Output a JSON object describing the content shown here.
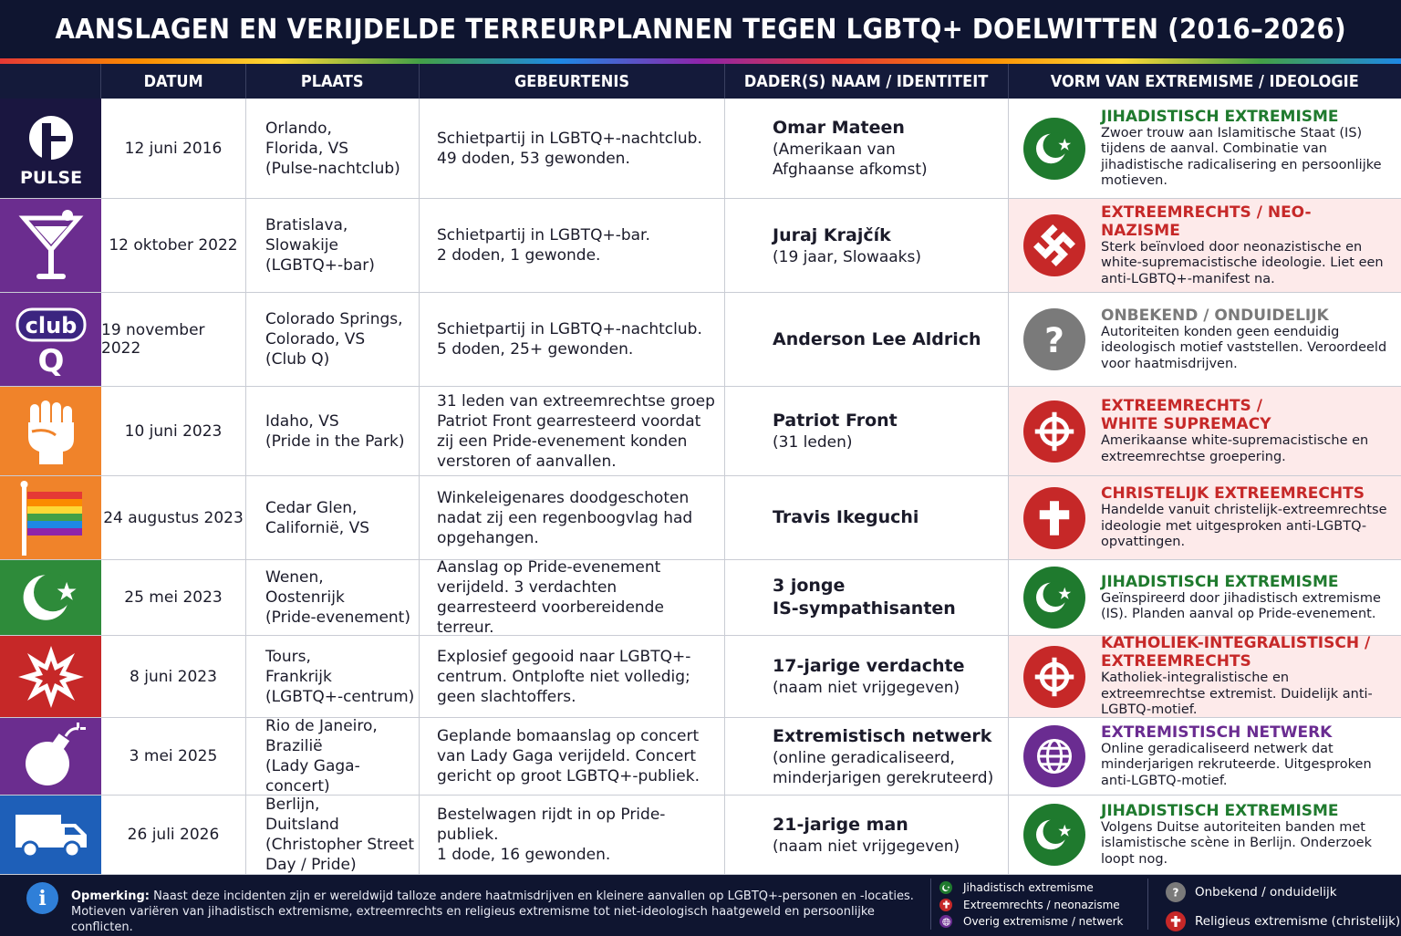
{
  "title": "AANSLAGEN EN VERIJDELDE TERREURPLANNEN TEGEN LGBTQ+ DOELWITTEN (2016–2026)",
  "columns": [
    "DATUM",
    "PLAATS",
    "GEBEURTENIS",
    "DADER(S) NAAM / IDENTITEIT",
    "VORM VAN EXTREMISME / IDEOLOGIE"
  ],
  "colors": {
    "jihadist": "#1f7a2e",
    "far_right": "#c62828",
    "unknown": "#7a7a7a",
    "network": "#6a2c91",
    "header_bg": "#0f1530"
  },
  "rows": [
    {
      "icon": "pulse-logo-icon",
      "icon_text": "PULSE",
      "icon_bg": "#1a1640",
      "date": "12 juni 2016",
      "place": "Orlando,\nFlorida, VS\n(Pulse-nachtclub)",
      "event": "Schietpartij in LGBTQ+-nachtclub.\n49 doden, 53 gewonden.",
      "perp_name": "Omar Mateen",
      "perp_detail": "(Amerikaan van\nAfghaanse afkomst)",
      "ideo_type": "jihadist",
      "ideo_icon": "crescent-star-icon",
      "ideo_title": "JIHADISTISCH EXTREMISME",
      "ideo_desc": "Zwoer trouw aan Islamitische Staat (IS) tijdens de aanval. Combinatie van jihadistische radicalisering en persoonlijke motieven.",
      "ideo_bg": "#ffffff"
    },
    {
      "icon": "cocktail-glass-icon",
      "icon_bg": "#6b2d8f",
      "date": "12 oktober 2022",
      "place": "Bratislava,\nSlowakije\n(LGBTQ+-bar)",
      "event": "Schietpartij in LGBTQ+-bar.\n2 doden, 1 gewonde.",
      "perp_name": "Juraj Krajčík",
      "perp_detail": "(19 jaar, Slowaaks)",
      "ideo_type": "far_right",
      "ideo_icon": "swastika-icon",
      "ideo_title": "EXTREEMRECHTS / NEO-NAZISME",
      "ideo_desc": "Sterk beïnvloed door neonazistische en white-supremacistische ideologie. Liet een anti-LGBTQ+-manifest na.",
      "ideo_bg": "#fdeaea"
    },
    {
      "icon": "club-q-logo-icon",
      "icon_text_1": "club",
      "icon_text_2": "Q",
      "icon_bg": "#6b2d8f",
      "date": "19 november 2022",
      "place": "Colorado Springs,\nColorado, VS\n(Club Q)",
      "event": "Schietpartij in LGBTQ+-nachtclub.\n5 doden, 25+ gewonden.",
      "perp_name": "Anderson Lee Aldrich",
      "perp_detail": "",
      "ideo_type": "unknown",
      "ideo_icon": "question-mark-icon",
      "ideo_title": "ONBEKEND / ONDUIDELIJK",
      "ideo_desc": "Autoriteiten konden geen eenduidig ideologisch motief vaststellen. Veroordeeld voor haatmisdrijven.",
      "ideo_bg": "#ffffff"
    },
    {
      "icon": "raised-fist-icon",
      "icon_bg": "#f0832a",
      "date": "10 juni 2023",
      "place": "Idaho, VS\n(Pride in the Park)",
      "event": "31 leden van extreemrechtse groep Patriot Front gearresteerd voordat zij een Pride-evenement konden verstoren of aanvallen.",
      "perp_name": "Patriot Front",
      "perp_detail": "(31 leden)",
      "ideo_type": "far_right",
      "ideo_icon": "celtic-cross-icon",
      "ideo_title": "EXTREEMRECHTS /\nWHITE SUPREMACY",
      "ideo_desc": "Amerikaanse white-supremacistische en extreemrechtse groepering.",
      "ideo_bg": "#fdeaea"
    },
    {
      "icon": "rainbow-flag-icon",
      "icon_bg": "#f0832a",
      "date": "24 augustus 2023",
      "place": "Cedar Glen,\nCalifornië, VS",
      "event": "Winkeleigenares doodgeschoten nadat zij een regenboogvlag had opgehangen.",
      "perp_name": "Travis Ikeguchi",
      "perp_detail": "",
      "ideo_type": "far_right",
      "ideo_icon": "christian-cross-icon",
      "ideo_title": "CHRISTELIJK EXTREEMRECHTS",
      "ideo_desc": "Handelde vanuit christelijk-extreemrechtse ideologie met uitgesproken anti-LGBTQ-opvattingen.",
      "ideo_bg": "#fdeaea"
    },
    {
      "icon": "crescent-star-icon",
      "icon_bg": "#2e8b3a",
      "date": "25 mei 2023",
      "place": "Wenen,\nOostenrijk\n(Pride-evenement)",
      "event": "Aanslag op Pride-evenement verijdeld. 3 verdachten gearresteerd voorbereidende terreur.",
      "perp_name": "3 jonge\nIS-sympathisanten",
      "perp_detail": "",
      "ideo_type": "jihadist",
      "ideo_icon": "crescent-star-icon",
      "ideo_title": "JIHADISTISCH EXTREMISME",
      "ideo_desc": "Geïnspireerd door jihadistisch extremisme (IS). Planden aanval op Pride-evenement.",
      "ideo_bg": "#ffffff"
    },
    {
      "icon": "explosion-icon",
      "icon_bg": "#c62828",
      "date": "8 juni 2023",
      "place": "Tours,\nFrankrijk\n(LGBTQ+-centrum)",
      "event": "Explosief gegooid naar LGBTQ+-centrum. Ontplofte niet volledig; geen slachtoffers.",
      "perp_name": "17-jarige verdachte",
      "perp_detail": "(naam niet vrijgegeven)",
      "ideo_type": "far_right",
      "ideo_icon": "celtic-cross-icon",
      "ideo_title": "KATHOLIEK-INTEGRALISTISCH /\nEXTREEMRECHTS",
      "ideo_desc": "Katholiek-integralistische en extreemrechtse extremist. Duidelijk anti-LGBTQ-motief.",
      "ideo_bg": "#fdeaea"
    },
    {
      "icon": "bomb-icon",
      "icon_bg": "#6b2d8f",
      "date": "3 mei 2025",
      "place": "Rio de Janeiro,\nBrazilië\n(Lady Gaga-concert)",
      "event": "Geplande bomaanslag op concert van Lady Gaga verijdeld. Concert gericht op groot LGBTQ+-publiek.",
      "perp_name": "Extremistisch netwerk",
      "perp_detail": "(online geradicaliseerd,\nminderjarigen gerekruteerd)",
      "ideo_type": "network",
      "ideo_icon": "globe-icon",
      "ideo_title": "EXTREMISTISCH NETWERK",
      "ideo_desc": "Online geradicaliseerd netwerk dat minderjarigen rekruteerde. Uitgesproken anti-LGBTQ-motief.",
      "ideo_bg": "#ffffff"
    },
    {
      "icon": "van-icon",
      "icon_bg": "#1e5fb8",
      "date": "26 juli 2026",
      "place": "Berlijn,\nDuitsland\n(Christopher Street\nDay / Pride)",
      "event": "Bestelwagen rijdt in op Pride-publiek.\n1 dode, 16 gewonden.",
      "perp_name": "21-jarige man",
      "perp_detail": "(naam niet vrijgegeven)",
      "ideo_type": "jihadist",
      "ideo_icon": "crescent-star-icon",
      "ideo_title": "JIHADISTISCH EXTREMISME",
      "ideo_desc": "Volgens Duitse autoriteiten banden met islamistische scène in Berlijn. Onderzoek loopt nog.",
      "ideo_bg": "#ffffff"
    }
  ],
  "footer": {
    "note_label": "Opmerking:",
    "note_text": " Naast deze incidenten zijn er wereldwijd talloze andere haatmisdrijven en kleinere aanvallen op LGBTQ+-personen en -locaties. Motieven variëren van jihadistisch extremisme, extreemrechts en religieus extremisme tot niet-ideologisch haatgeweld en persoonlijke conflicten.",
    "legend_left": [
      {
        "label": "Jihadistisch extremisme",
        "icon": "crescent-star-icon",
        "color": "#1f7a2e"
      },
      {
        "label": "Extreemrechts / neonazisme",
        "icon": "cross-icon",
        "color": "#c62828"
      },
      {
        "label": "Overig extremisme / netwerk",
        "icon": "globe-icon",
        "color": "#6a2c91"
      }
    ],
    "legend_right": [
      {
        "label": "Onbekend / onduidelijk",
        "icon": "question-mark-icon",
        "color": "#7a7a7a"
      },
      {
        "label": "Religieus extremisme (christelijk)",
        "icon": "christian-cross-icon",
        "color": "#c62828"
      }
    ]
  }
}
